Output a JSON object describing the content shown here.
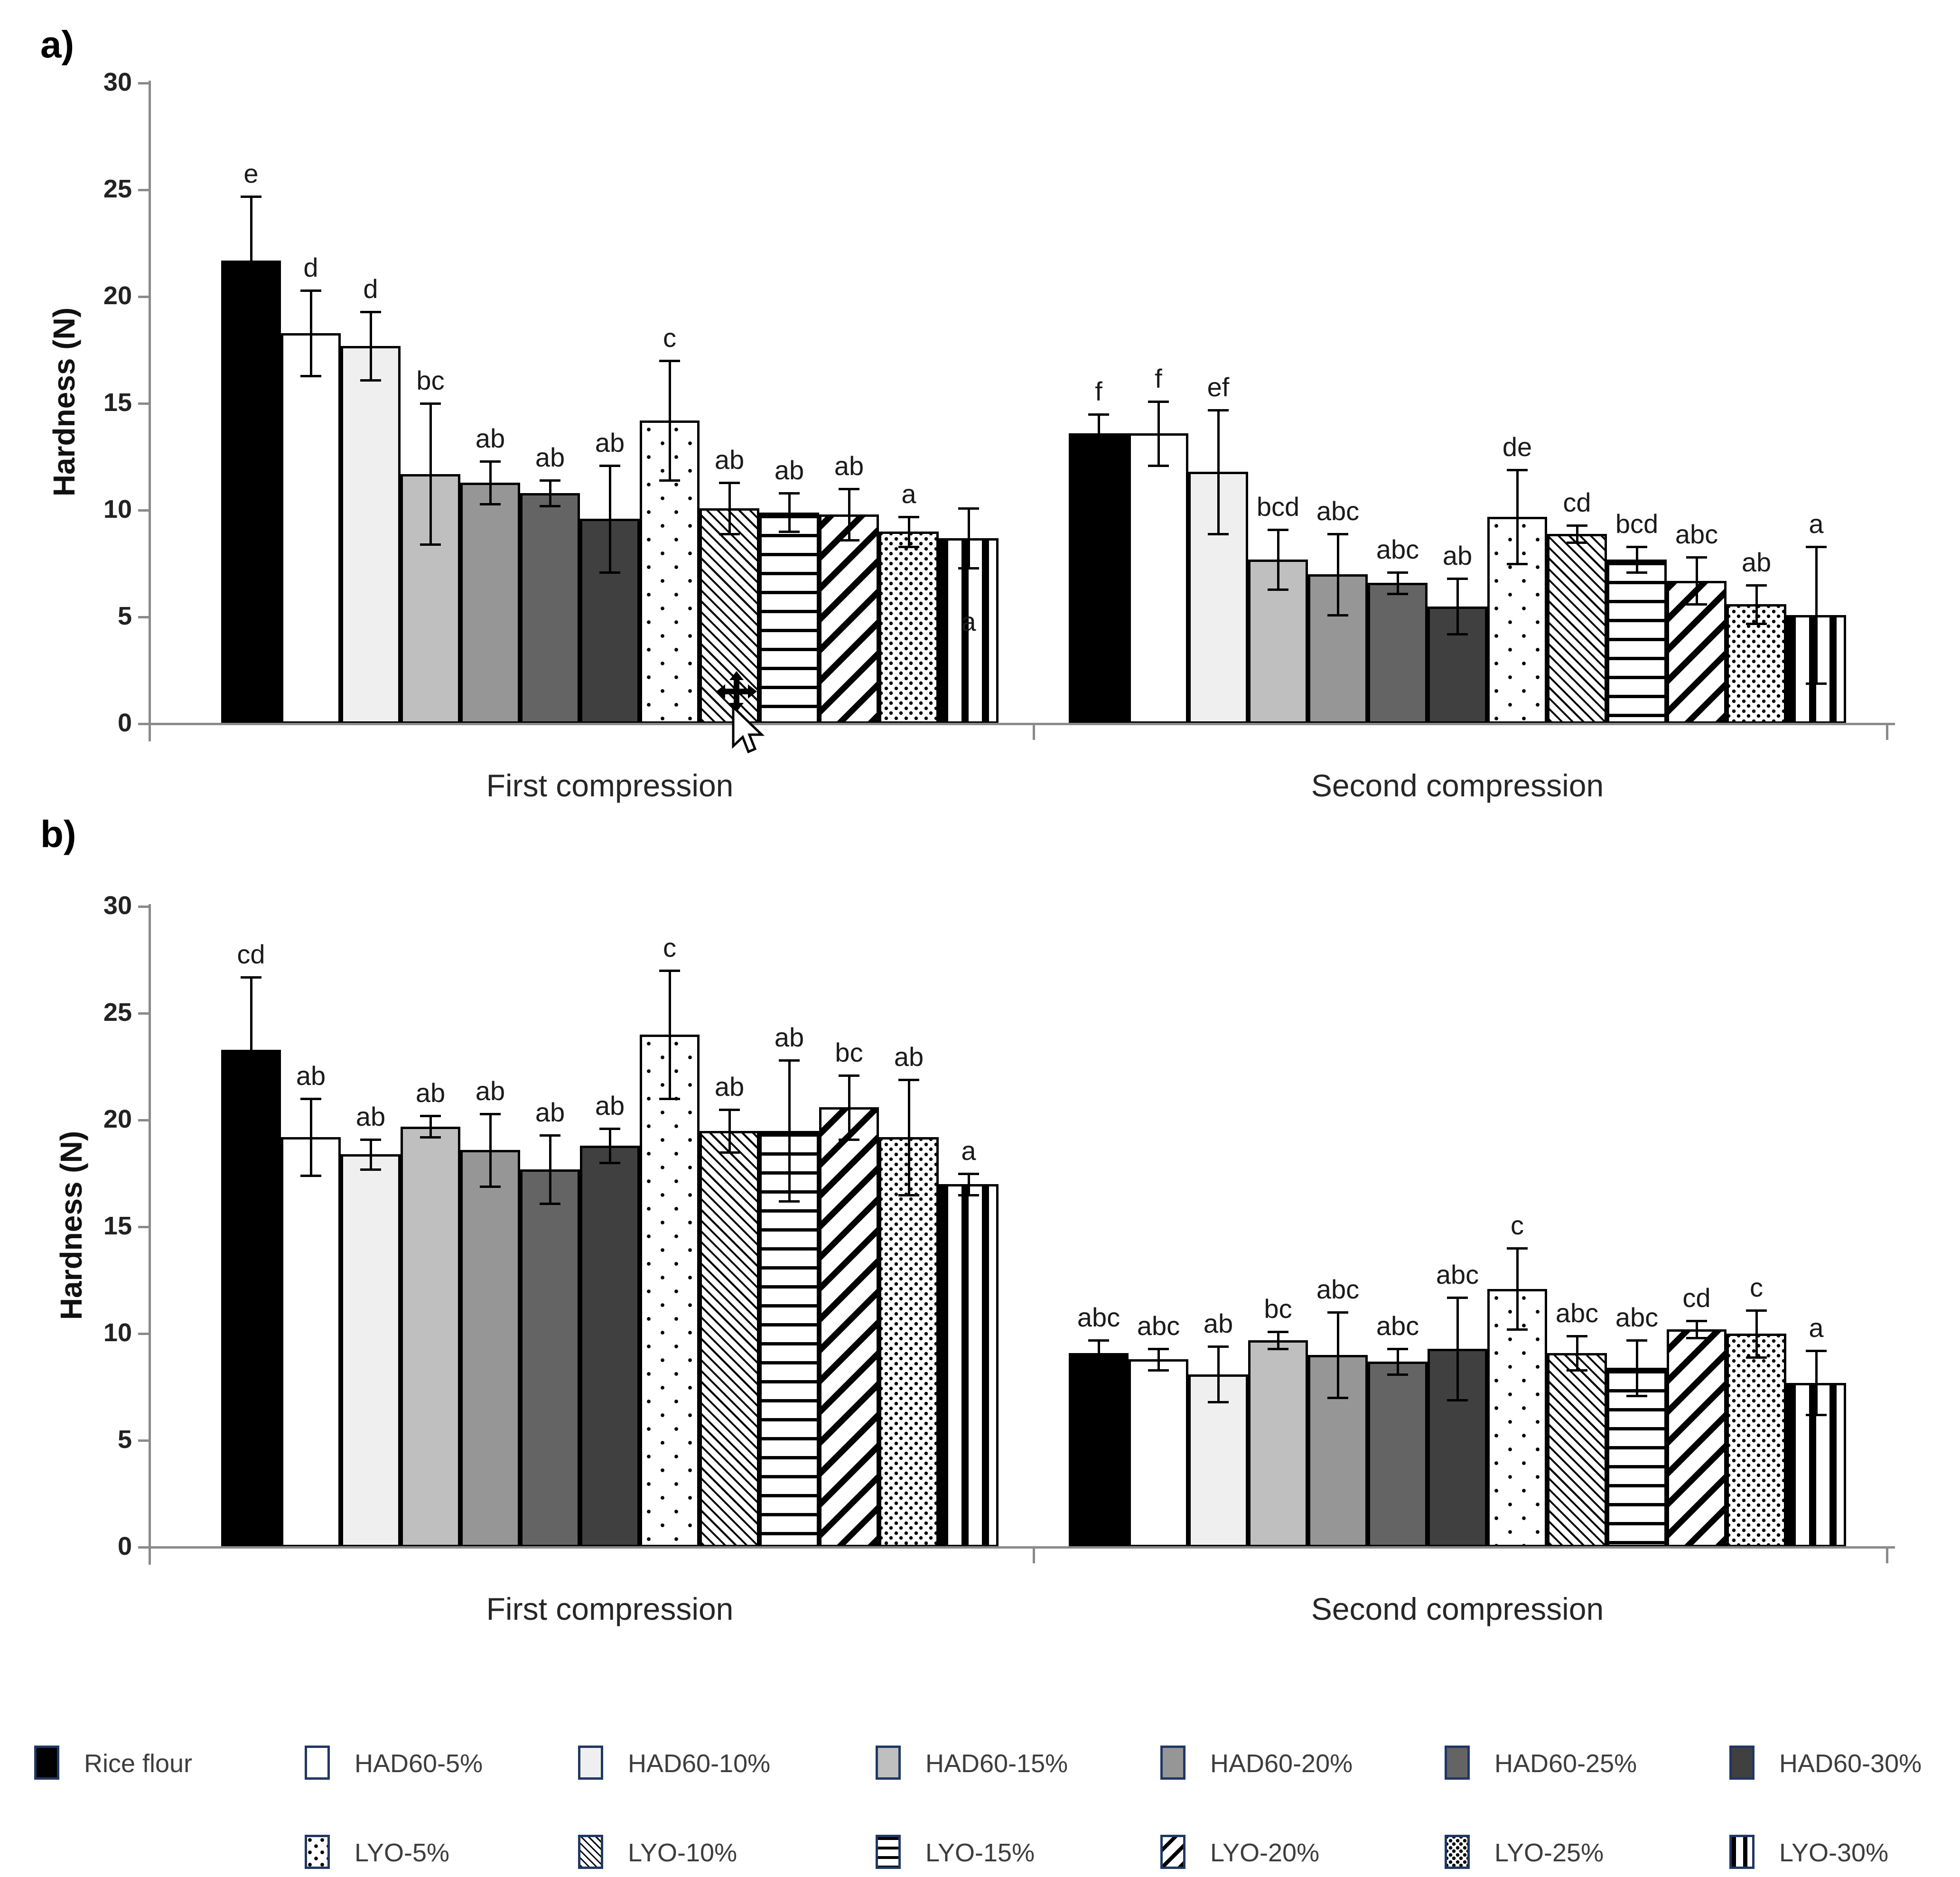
{
  "colors": {
    "axis": "#8a8a8a",
    "swatch_border": "#1f3864",
    "legend_text": "#3d3d3d",
    "text": "#262626"
  },
  "cursor": {
    "icons": [
      "move-cursor-icon",
      "arrow-pointer-icon"
    ]
  },
  "legend_row_split": 7,
  "chart_data": [
    {
      "type": "bar",
      "title": "a)",
      "ylabel": "Hardness (N)",
      "ylim": [
        0,
        30
      ],
      "yticks": [
        0,
        5,
        10,
        15,
        20,
        25,
        30
      ],
      "categories": [
        "First compression",
        "Second compression"
      ],
      "legend_position": "bottom",
      "grid": false,
      "series": [
        {
          "name": "Rice flour",
          "pattern": "solid",
          "fill": "#000000",
          "values": [
            21.7,
            13.6
          ],
          "errors": [
            3.0,
            0.9
          ],
          "sig": [
            "e",
            "f"
          ]
        },
        {
          "name": "HAD60-5%",
          "pattern": "solid",
          "fill": "#ffffff",
          "values": [
            18.3,
            13.6
          ],
          "errors": [
            2.0,
            1.5
          ],
          "sig": [
            "d",
            "f"
          ]
        },
        {
          "name": "HAD60-10%",
          "pattern": "solid",
          "fill": "#efefef",
          "values": [
            17.7,
            11.8
          ],
          "errors": [
            1.6,
            2.9
          ],
          "sig": [
            "d",
            "ef"
          ]
        },
        {
          "name": "HAD60-15%",
          "pattern": "solid",
          "fill": "#bfbfbf",
          "values": [
            11.7,
            7.7
          ],
          "errors": [
            3.3,
            1.4
          ],
          "sig": [
            "bc",
            "bcd"
          ]
        },
        {
          "name": "HAD60-20%",
          "pattern": "solid",
          "fill": "#969696",
          "values": [
            11.3,
            7.0
          ],
          "errors": [
            1.0,
            1.9
          ],
          "sig": [
            "ab",
            "abc"
          ]
        },
        {
          "name": "HAD60-25%",
          "pattern": "solid",
          "fill": "#646464",
          "values": [
            10.8,
            6.6
          ],
          "errors": [
            0.6,
            0.5
          ],
          "sig": [
            "ab",
            "abc"
          ]
        },
        {
          "name": "HAD60-30%",
          "pattern": "solid",
          "fill": "#404040",
          "values": [
            9.6,
            5.5
          ],
          "errors": [
            2.5,
            1.3
          ],
          "sig": [
            "ab",
            "ab"
          ]
        },
        {
          "name": "LYO-5%",
          "pattern": "dots-sparse",
          "values": [
            14.2,
            9.7
          ],
          "errors": [
            2.8,
            2.2
          ],
          "sig": [
            "c",
            "de"
          ]
        },
        {
          "name": "LYO-10%",
          "pattern": "hatch-backslash",
          "values": [
            10.1,
            8.9
          ],
          "errors": [
            1.2,
            0.4
          ],
          "sig": [
            "ab",
            "cd"
          ]
        },
        {
          "name": "LYO-15%",
          "pattern": "lines-horizontal",
          "values": [
            9.9,
            7.7
          ],
          "errors": [
            0.9,
            0.6
          ],
          "sig": [
            "ab",
            "bcd"
          ]
        },
        {
          "name": "LYO-20%",
          "pattern": "hatch-forward",
          "values": [
            9.8,
            6.7
          ],
          "errors": [
            1.2,
            1.1
          ],
          "sig": [
            "ab",
            "abc"
          ]
        },
        {
          "name": "LYO-25%",
          "pattern": "dots-dense",
          "values": [
            9.0,
            5.6
          ],
          "errors": [
            0.7,
            0.9
          ],
          "sig": [
            "a",
            "ab"
          ]
        },
        {
          "name": "LYO-30%",
          "pattern": "stripes-vertical",
          "values": [
            8.7,
            5.1
          ],
          "errors": [
            1.4,
            3.2
          ],
          "sig": [
            "a",
            "a"
          ],
          "sig_inside": [
            true,
            false
          ]
        }
      ]
    },
    {
      "type": "bar",
      "title": "b)",
      "ylabel": "Hardness (N)",
      "ylim": [
        0,
        30
      ],
      "yticks": [
        0,
        5,
        10,
        15,
        20,
        25,
        30
      ],
      "categories": [
        "First compression",
        "Second compression"
      ],
      "legend_position": "bottom",
      "grid": false,
      "series": [
        {
          "name": "Rice flour",
          "values": [
            23.3,
            9.1
          ],
          "errors": [
            3.4,
            0.6
          ],
          "sig": [
            "cd",
            "abc"
          ]
        },
        {
          "name": "HAD60-5%",
          "values": [
            19.2,
            8.8
          ],
          "errors": [
            1.8,
            0.5
          ],
          "sig": [
            "ab",
            "abc"
          ]
        },
        {
          "name": "HAD60-10%",
          "values": [
            18.4,
            8.1
          ],
          "errors": [
            0.7,
            1.3
          ],
          "sig": [
            "ab",
            "ab"
          ]
        },
        {
          "name": "HAD60-15%",
          "values": [
            19.7,
            9.7
          ],
          "errors": [
            0.5,
            0.4
          ],
          "sig": [
            "ab",
            "bc"
          ]
        },
        {
          "name": "HAD60-20%",
          "values": [
            18.6,
            9.0
          ],
          "errors": [
            1.7,
            2.0
          ],
          "sig": [
            "ab",
            "abc"
          ]
        },
        {
          "name": "HAD60-25%",
          "values": [
            17.7,
            8.7
          ],
          "errors": [
            1.6,
            0.6
          ],
          "sig": [
            "ab",
            "abc"
          ]
        },
        {
          "name": "HAD60-30%",
          "values": [
            18.8,
            9.3
          ],
          "errors": [
            0.8,
            2.4
          ],
          "sig": [
            "ab",
            "abc"
          ]
        },
        {
          "name": "LYO-5%",
          "values": [
            24.0,
            12.1
          ],
          "errors": [
            3.0,
            1.9
          ],
          "sig": [
            "c",
            "c"
          ]
        },
        {
          "name": "LYO-10%",
          "values": [
            19.5,
            9.1
          ],
          "errors": [
            1.0,
            0.8
          ],
          "sig": [
            "ab",
            "abc"
          ]
        },
        {
          "name": "LYO-15%",
          "values": [
            19.5,
            8.4
          ],
          "errors": [
            3.3,
            1.3
          ],
          "sig": [
            "ab",
            "abc"
          ]
        },
        {
          "name": "LYO-20%",
          "values": [
            20.6,
            10.2
          ],
          "errors": [
            1.5,
            0.4
          ],
          "sig": [
            "bc",
            "cd"
          ]
        },
        {
          "name": "LYO-25%",
          "values": [
            19.2,
            10.0
          ],
          "errors": [
            2.7,
            1.1
          ],
          "sig": [
            "ab",
            "c"
          ]
        },
        {
          "name": "LYO-30%",
          "values": [
            17.0,
            7.7
          ],
          "errors": [
            0.5,
            1.5
          ],
          "sig": [
            "a",
            "a"
          ]
        }
      ]
    }
  ]
}
